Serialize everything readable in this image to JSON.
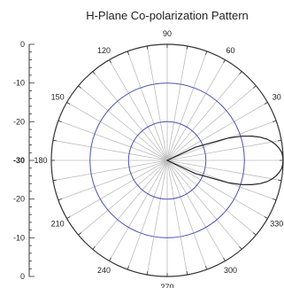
{
  "chart_data": {
    "type": "polar-line",
    "title": "H-Plane Co-polarization Pattern",
    "radial_axis": {
      "min": -30,
      "max": 0,
      "tick_labels": [
        "0",
        "-10",
        "-20",
        "-30",
        "-20",
        "-10",
        "0"
      ],
      "ring_values": [
        -20,
        -10
      ]
    },
    "angular_axis": {
      "unit": "degrees",
      "tick_labels": [
        "90",
        "60",
        "30",
        "330",
        "300",
        "270",
        "240",
        "210",
        "180",
        "150",
        "120"
      ],
      "tick_angles": [
        90,
        60,
        30,
        330,
        300,
        270,
        240,
        210,
        180,
        150,
        120
      ],
      "minor_step_deg": 10
    },
    "series": [
      {
        "angles": [
          0,
          2,
          4,
          6,
          8,
          10,
          12,
          14,
          16,
          18,
          20,
          25,
          30,
          45,
          60,
          90,
          120,
          150,
          180,
          210,
          240,
          270,
          300,
          315,
          330,
          335,
          340,
          342,
          344,
          346,
          348,
          350,
          352,
          354,
          356,
          358,
          360
        ],
        "r": [
          0,
          -0.1,
          -0.3,
          -0.8,
          -1.5,
          -2.4,
          -3.6,
          -5.2,
          -7.2,
          -9.8,
          -13.0,
          -22.0,
          -30,
          -30,
          -30,
          -30,
          -30,
          -30,
          -30,
          -30,
          -30,
          -30,
          -30,
          -30,
          -30,
          -22.0,
          -13.0,
          -9.8,
          -7.2,
          -5.2,
          -3.6,
          -2.4,
          -1.5,
          -0.8,
          -0.3,
          -0.1,
          0
        ]
      }
    ],
    "colors": {
      "pattern": "#222222",
      "rings": "#4a56b0",
      "spokes": "#bdbdbd",
      "outer": "#333333"
    }
  }
}
